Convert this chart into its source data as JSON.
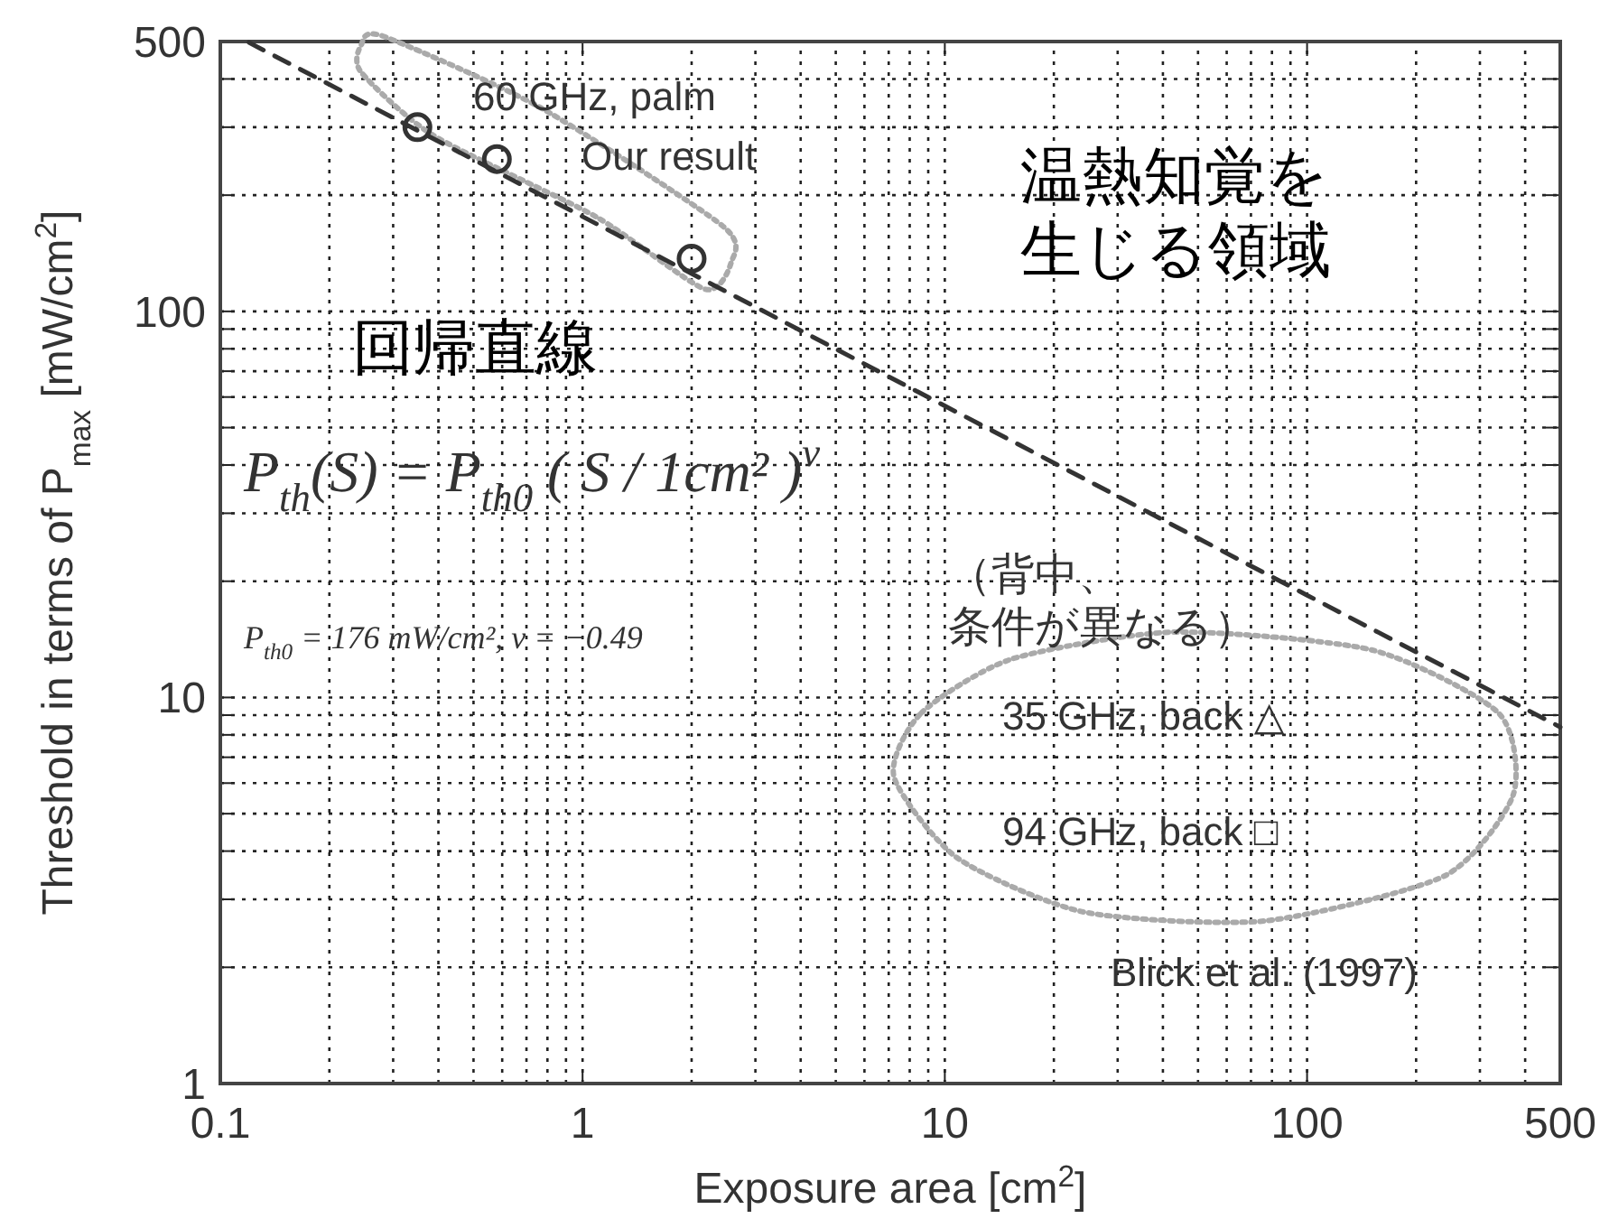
{
  "chart_data": {
    "type": "scatter",
    "xlabel": "Exposure area [cm$^{2}$]",
    "ylabel": "Threshold in terms of P$_{max}$ [mW/cm$^{2}$]",
    "log": "xy",
    "grid": true,
    "xlim": [
      0.1,
      500
    ],
    "ylim": [
      1,
      500
    ],
    "xticks": [
      0.1,
      {
        "value": 0.2,
        "label": null
      },
      {
        "value": 0.3,
        "label": null
      },
      {
        "value": 0.4,
        "label": null
      },
      {
        "value": 0.5,
        "label": null
      },
      {
        "value": 0.6,
        "label": null
      },
      {
        "value": 0.7,
        "label": null
      },
      {
        "value": 0.8,
        "label": null
      },
      {
        "value": 0.9,
        "label": null
      },
      1,
      {
        "value": 2,
        "label": null
      },
      {
        "value": 3,
        "label": null
      },
      {
        "value": 4,
        "label": null
      },
      {
        "value": 5,
        "label": null
      },
      {
        "value": 6,
        "label": null
      },
      {
        "value": 7,
        "label": null
      },
      {
        "value": 8,
        "label": null
      },
      {
        "value": 9,
        "label": null
      },
      10,
      {
        "value": 20,
        "label": null
      },
      {
        "value": 30,
        "label": null
      },
      {
        "value": 40,
        "label": null
      },
      {
        "value": 50,
        "label": null
      },
      {
        "value": 60,
        "label": null
      },
      {
        "value": 70,
        "label": null
      },
      {
        "value": 80,
        "label": null
      },
      {
        "value": 90,
        "label": null
      },
      100,
      {
        "value": 200,
        "label": null
      },
      {
        "value": 300,
        "label": null
      },
      {
        "value": 400,
        "label": null
      },
      500
    ],
    "yticks": [
      1,
      {
        "value": 2,
        "label": null
      },
      {
        "value": 3,
        "label": null
      },
      {
        "value": 4,
        "label": null
      },
      {
        "value": 5,
        "label": null
      },
      {
        "value": 6,
        "label": null
      },
      {
        "value": 7,
        "label": null
      },
      {
        "value": 8,
        "label": null
      },
      {
        "value": 9,
        "label": null
      },
      10,
      {
        "value": 20,
        "label": null
      },
      {
        "value": 30,
        "label": null
      },
      {
        "value": 40,
        "label": null
      },
      {
        "value": 50,
        "label": null
      },
      {
        "value": 60,
        "label": null
      },
      {
        "value": 70,
        "label": null
      },
      {
        "value": 80,
        "label": null
      },
      {
        "value": 90,
        "label": null
      },
      100,
      {
        "value": 200,
        "label": null
      },
      {
        "value": 300,
        "label": null
      },
      {
        "value": 400,
        "label": null
      },
      500
    ],
    "series": [
      {
        "type": "line",
        "color": "#333333",
        "line_style": "dashed",
        "marker": "none",
        "x": [
          0.12,
          1,
          10,
          100,
          500
        ],
        "values": [
          497,
          176,
          56.9,
          18.4,
          8.38
        ]
      },
      {
        "type": "scatter",
        "color": "#333333",
        "marker": "circle",
        "x": [
          0.35,
          0.58,
          2.0
        ],
        "values": [
          300,
          248,
          137
        ]
      }
    ],
    "annotations": [
      "60 GHz, palm",
      "Our result",
      "温熱知覚を生じる領域",
      "回帰直線",
      "P$_{th}$(S) = P$_{th0}$ ( S / 1cm² )$^{ν}$",
      "P$_{th0}$ = 176 mW/cm², ν = −0.49",
      "（背中、条件が異なる）",
      "35 GHz, back △",
      "94 GHz, back □",
      "Blick et al. (1997)"
    ]
  }
}
